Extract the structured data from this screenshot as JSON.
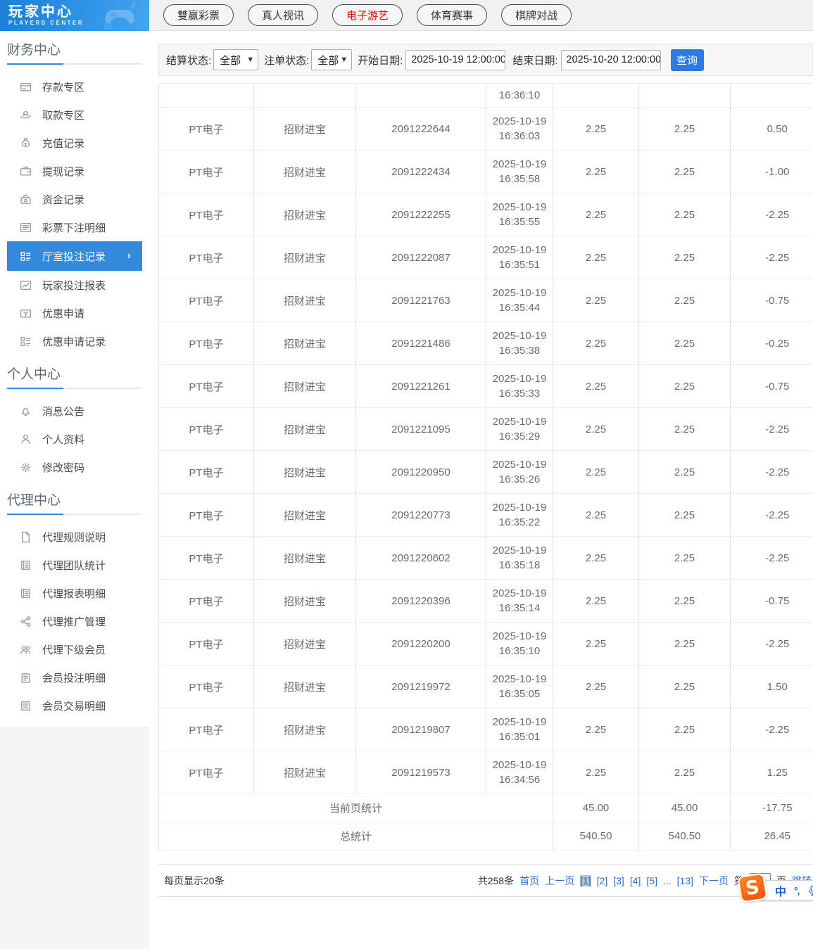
{
  "logo": {
    "title": "玩家中心",
    "subtitle": "PLAYERS CENTER"
  },
  "top_tabs": [
    {
      "label": "雙赢彩票",
      "active": false
    },
    {
      "label": "真人视讯",
      "active": false
    },
    {
      "label": "电子游艺",
      "active": true
    },
    {
      "label": "体育赛事",
      "active": false
    },
    {
      "label": "棋牌对战",
      "active": false
    }
  ],
  "sidebar": {
    "sections": [
      {
        "title": "财务中心",
        "items": [
          {
            "label": "存款专区",
            "icon": "deposit-card"
          },
          {
            "label": "取款专区",
            "icon": "withdraw-hand"
          },
          {
            "label": "充值记录",
            "icon": "moneybag"
          },
          {
            "label": "提现记录",
            "icon": "wallet"
          },
          {
            "label": "资金记录",
            "icon": "purse"
          },
          {
            "label": "彩票下注明细",
            "icon": "list"
          },
          {
            "label": "厅室投注记录",
            "icon": "grid-list",
            "active": true
          },
          {
            "label": "玩家投注报表",
            "icon": "chart"
          },
          {
            "label": "优惠申请",
            "icon": "coupon"
          },
          {
            "label": "优惠申请记录",
            "icon": "grid-list"
          }
        ]
      },
      {
        "title": "个人中心",
        "items": [
          {
            "label": "消息公告",
            "icon": "bell"
          },
          {
            "label": "个人资料",
            "icon": "person"
          },
          {
            "label": "修改密码",
            "icon": "gear"
          }
        ]
      },
      {
        "title": "代理中心",
        "items": [
          {
            "label": "代理规则说明",
            "icon": "doc"
          },
          {
            "label": "代理团队统计",
            "icon": "report"
          },
          {
            "label": "代理报表明细",
            "icon": "report"
          },
          {
            "label": "代理推广管理",
            "icon": "share"
          },
          {
            "label": "代理下级会员",
            "icon": "people"
          },
          {
            "label": "会员投注明细",
            "icon": "clipboard"
          },
          {
            "label": "会员交易明细",
            "icon": "doc-lines"
          }
        ]
      }
    ]
  },
  "filters": {
    "settle_label": "结算状态:",
    "settle_value": "全部",
    "order_label": "注单状态:",
    "order_value": "全部",
    "start_label": "开始日期:",
    "start_value": "2025-10-19 12:00:00",
    "end_label": "结束日期:",
    "end_value": "2025-10-20 12:00:00",
    "search_label": "查询"
  },
  "table": {
    "partial_row_time": "16:36:10",
    "rows": [
      {
        "platform": "PT电子",
        "game": "招财进宝",
        "order": "2091222644",
        "date": "2025-10-19",
        "time": "16:36:03",
        "bet": "2.25",
        "valid": "2.25",
        "winloss": "0.50"
      },
      {
        "platform": "PT电子",
        "game": "招财进宝",
        "order": "2091222434",
        "date": "2025-10-19",
        "time": "16:35:58",
        "bet": "2.25",
        "valid": "2.25",
        "winloss": "-1.00"
      },
      {
        "platform": "PT电子",
        "game": "招财进宝",
        "order": "2091222255",
        "date": "2025-10-19",
        "time": "16:35:55",
        "bet": "2.25",
        "valid": "2.25",
        "winloss": "-2.25"
      },
      {
        "platform": "PT电子",
        "game": "招财进宝",
        "order": "2091222087",
        "date": "2025-10-19",
        "time": "16:35:51",
        "bet": "2.25",
        "valid": "2.25",
        "winloss": "-2.25"
      },
      {
        "platform": "PT电子",
        "game": "招财进宝",
        "order": "2091221763",
        "date": "2025-10-19",
        "time": "16:35:44",
        "bet": "2.25",
        "valid": "2.25",
        "winloss": "-0.75"
      },
      {
        "platform": "PT电子",
        "game": "招财进宝",
        "order": "2091221486",
        "date": "2025-10-19",
        "time": "16:35:38",
        "bet": "2.25",
        "valid": "2.25",
        "winloss": "-0.25"
      },
      {
        "platform": "PT电子",
        "game": "招财进宝",
        "order": "2091221261",
        "date": "2025-10-19",
        "time": "16:35:33",
        "bet": "2.25",
        "valid": "2.25",
        "winloss": "-0.75"
      },
      {
        "platform": "PT电子",
        "game": "招财进宝",
        "order": "2091221095",
        "date": "2025-10-19",
        "time": "16:35:29",
        "bet": "2.25",
        "valid": "2.25",
        "winloss": "-2.25"
      },
      {
        "platform": "PT电子",
        "game": "招财进宝",
        "order": "2091220950",
        "date": "2025-10-19",
        "time": "16:35:26",
        "bet": "2.25",
        "valid": "2.25",
        "winloss": "-2.25"
      },
      {
        "platform": "PT电子",
        "game": "招财进宝",
        "order": "2091220773",
        "date": "2025-10-19",
        "time": "16:35:22",
        "bet": "2.25",
        "valid": "2.25",
        "winloss": "-2.25"
      },
      {
        "platform": "PT电子",
        "game": "招财进宝",
        "order": "2091220602",
        "date": "2025-10-19",
        "time": "16:35:18",
        "bet": "2.25",
        "valid": "2.25",
        "winloss": "-2.25"
      },
      {
        "platform": "PT电子",
        "game": "招财进宝",
        "order": "2091220396",
        "date": "2025-10-19",
        "time": "16:35:14",
        "bet": "2.25",
        "valid": "2.25",
        "winloss": "-0.75"
      },
      {
        "platform": "PT电子",
        "game": "招财进宝",
        "order": "2091220200",
        "date": "2025-10-19",
        "time": "16:35:10",
        "bet": "2.25",
        "valid": "2.25",
        "winloss": "-2.25"
      },
      {
        "platform": "PT电子",
        "game": "招财进宝",
        "order": "2091219972",
        "date": "2025-10-19",
        "time": "16:35:05",
        "bet": "2.25",
        "valid": "2.25",
        "winloss": "1.50"
      },
      {
        "platform": "PT电子",
        "game": "招财进宝",
        "order": "2091219807",
        "date": "2025-10-19",
        "time": "16:35:01",
        "bet": "2.25",
        "valid": "2.25",
        "winloss": "-2.25"
      },
      {
        "platform": "PT电子",
        "game": "招财进宝",
        "order": "2091219573",
        "date": "2025-10-19",
        "time": "16:34:56",
        "bet": "2.25",
        "valid": "2.25",
        "winloss": "1.25"
      }
    ],
    "page_stats": {
      "label": "当前页统计",
      "bet": "45.00",
      "valid": "45.00",
      "winloss": "-17.75"
    },
    "total_stats": {
      "label": "总统计",
      "bet": "540.50",
      "valid": "540.50",
      "winloss": "26.45"
    }
  },
  "pagination": {
    "page_size_text": "每页显示20条",
    "total_text": "共258条",
    "first": "首页",
    "prev": "上一页",
    "pages": [
      {
        "label": "[1]",
        "current": true
      },
      {
        "label": "[2]",
        "current": false
      },
      {
        "label": "[3]",
        "current": false
      },
      {
        "label": "[4]",
        "current": false
      },
      {
        "label": "[5]",
        "current": false
      },
      {
        "label": "...",
        "current": false,
        "ellipsis": true
      },
      {
        "label": "[13]",
        "current": false
      }
    ],
    "next": "下一页",
    "jump_prefix": "第",
    "jump_suffix": "页",
    "jump_action": "跳转"
  },
  "ime": {
    "logo": "S",
    "lang": "中",
    "punct": "°,"
  },
  "colors": {
    "accent_blue": "#3389dc",
    "link_blue": "#2f6cd4",
    "active_red": "#f00b0b",
    "button_blue": "#2a7ce0"
  }
}
